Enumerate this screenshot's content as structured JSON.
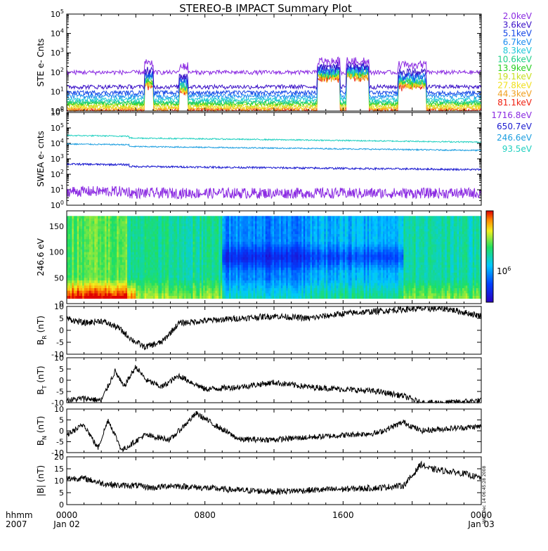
{
  "title": "STEREO-B IMPACT Summary Plot",
  "stamp": "Wed Dec 14 06:45:28 2008",
  "x_axis": {
    "tick_labels": [
      {
        "t": 0,
        "line1": "0000",
        "line2": "Jan 02"
      },
      {
        "t": 8,
        "line1": "0800",
        "line2": ""
      },
      {
        "t": 16,
        "line1": "1600",
        "line2": ""
      },
      {
        "t": 24,
        "line1": "0000",
        "line2": "Jan 03"
      }
    ],
    "left_label_line1": "hhmm",
    "left_label_line2": "2007",
    "range_hours": [
      0,
      24
    ]
  },
  "colorbar": {
    "label": "10",
    "label_exp": "6"
  },
  "chart_data": [
    {
      "type": "line",
      "panel": "ste",
      "ylabel": "STE e- Cnts",
      "log": true,
      "ylim_exp": [
        0,
        5
      ],
      "tick_exponents": [
        0,
        1,
        2,
        3,
        4,
        5
      ],
      "series": [
        {
          "name": "2.0keV",
          "color": "#8b2be2",
          "base": 100
        },
        {
          "name": "3.6keV",
          "color": "#3a10c8",
          "base": 18
        },
        {
          "name": "5.1keV",
          "color": "#1446e6",
          "base": 9
        },
        {
          "name": "6.7keV",
          "color": "#1c8cf0",
          "base": 6
        },
        {
          "name": "8.3keV",
          "color": "#20c8d8",
          "base": 4
        },
        {
          "name": "10.6keV",
          "color": "#20d08a",
          "base": 3
        },
        {
          "name": "13.9keV",
          "color": "#28d020",
          "base": 2.5
        },
        {
          "name": "19.1keV",
          "color": "#c8e020",
          "base": 2
        },
        {
          "name": "27.8keV",
          "color": "#f0e020",
          "base": 1.6
        },
        {
          "name": "44.3keV",
          "color": "#f0a020",
          "base": 1.3
        },
        {
          "name": "81.1keV",
          "color": "#f02010",
          "base": 1.1
        }
      ],
      "enhancements": [
        {
          "from": 4.5,
          "to": 5.0,
          "factor": 30
        },
        {
          "from": 6.5,
          "to": 7.0,
          "factor": 12
        },
        {
          "from": 14.5,
          "to": 15.8,
          "factor": 80
        },
        {
          "from": 16.2,
          "to": 17.5,
          "factor": 90
        },
        {
          "from": 19.2,
          "to": 20.8,
          "factor": 25
        }
      ]
    },
    {
      "type": "line",
      "panel": "swea",
      "ylabel": "SWEA e- cnts",
      "log": true,
      "ylim_exp": [
        0,
        6
      ],
      "tick_exponents": [
        0,
        1,
        2,
        3,
        4,
        5,
        6
      ],
      "series": [
        {
          "name": "1716.8eV",
          "color": "#8b2be2",
          "start": 6,
          "end": 6,
          "noise": 0.35
        },
        {
          "name": "650.7eV",
          "color": "#1a1ad0",
          "start": 350,
          "end": 200,
          "noise": 0.06
        },
        {
          "name": "246.6eV",
          "color": "#1c9ee0",
          "start": 7000,
          "end": 3500,
          "noise": 0.04
        },
        {
          "name": "93.5eV",
          "color": "#20d0c0",
          "start": 25000,
          "end": 12000,
          "noise": 0.04
        }
      ]
    },
    {
      "type": "heatmap",
      "panel": "pad",
      "ylabel": "246.6 eV",
      "ylim": [
        0,
        180
      ],
      "ticks": [
        0,
        50,
        100,
        150
      ]
    },
    {
      "type": "line",
      "panel": "br",
      "ylabel": "B",
      "ylabel_sub": "R",
      "ylabel_unit": " (nT)",
      "ylim": [
        -10,
        10
      ],
      "ticks": [
        -10,
        -5,
        0,
        5,
        10
      ],
      "keypoints": [
        [
          0,
          5
        ],
        [
          1,
          3
        ],
        [
          2,
          4
        ],
        [
          3,
          1
        ],
        [
          3.8,
          -4
        ],
        [
          4.5,
          -7
        ],
        [
          5.5,
          -5
        ],
        [
          6.5,
          3
        ],
        [
          8,
          4
        ],
        [
          10,
          5
        ],
        [
          12,
          6
        ],
        [
          14,
          5
        ],
        [
          16,
          7
        ],
        [
          18,
          8
        ],
        [
          20,
          9
        ],
        [
          22,
          9
        ],
        [
          24,
          6
        ]
      ]
    },
    {
      "type": "line",
      "panel": "bt",
      "ylabel": "B",
      "ylabel_sub": "T",
      "ylabel_unit": " (nT)",
      "ylim": [
        -10,
        10
      ],
      "ticks": [
        -10,
        -5,
        0,
        5,
        10
      ],
      "keypoints": [
        [
          0,
          -9
        ],
        [
          1,
          -8
        ],
        [
          2,
          -9
        ],
        [
          2.8,
          4
        ],
        [
          3.3,
          -3
        ],
        [
          4,
          6
        ],
        [
          4.6,
          0
        ],
        [
          5.5,
          -3
        ],
        [
          6.5,
          2
        ],
        [
          8,
          -4
        ],
        [
          10,
          -3
        ],
        [
          12,
          -1
        ],
        [
          14,
          -3
        ],
        [
          16,
          -4
        ],
        [
          18,
          -5
        ],
        [
          19.5,
          -7
        ],
        [
          20.5,
          -10
        ],
        [
          22,
          -10
        ],
        [
          24,
          -9
        ]
      ]
    },
    {
      "type": "line",
      "panel": "bn",
      "ylabel": "B",
      "ylabel_sub": "N",
      "ylabel_unit": " (nT)",
      "ylim": [
        -10,
        10
      ],
      "ticks": [
        -10,
        -5,
        0,
        5,
        10
      ],
      "keypoints": [
        [
          0,
          -2
        ],
        [
          1,
          3
        ],
        [
          1.8,
          -8
        ],
        [
          2.4,
          5
        ],
        [
          3.2,
          -9
        ],
        [
          4.5,
          -2
        ],
        [
          6,
          -4
        ],
        [
          7.5,
          8
        ],
        [
          8.5,
          3
        ],
        [
          10,
          -4
        ],
        [
          12,
          -4
        ],
        [
          14,
          -3
        ],
        [
          16,
          -2
        ],
        [
          18,
          -1
        ],
        [
          19.5,
          4
        ],
        [
          20.5,
          0
        ],
        [
          22,
          1
        ],
        [
          24,
          2
        ]
      ]
    },
    {
      "type": "line",
      "panel": "bmag",
      "ylabel": "|B| (nT)",
      "ylim": [
        0,
        20
      ],
      "ticks": [
        0,
        5,
        10,
        15,
        20
      ],
      "keypoints": [
        [
          0,
          11
        ],
        [
          1,
          11
        ],
        [
          2,
          9
        ],
        [
          3,
          8
        ],
        [
          4,
          8
        ],
        [
          5,
          7
        ],
        [
          6,
          8
        ],
        [
          8,
          7
        ],
        [
          10,
          6
        ],
        [
          12,
          5.5
        ],
        [
          14,
          6
        ],
        [
          16,
          6.5
        ],
        [
          18,
          7
        ],
        [
          19.5,
          8
        ],
        [
          20,
          12
        ],
        [
          20.5,
          17
        ],
        [
          21,
          15
        ],
        [
          22,
          14
        ],
        [
          23,
          13
        ],
        [
          24,
          11
        ]
      ]
    }
  ]
}
